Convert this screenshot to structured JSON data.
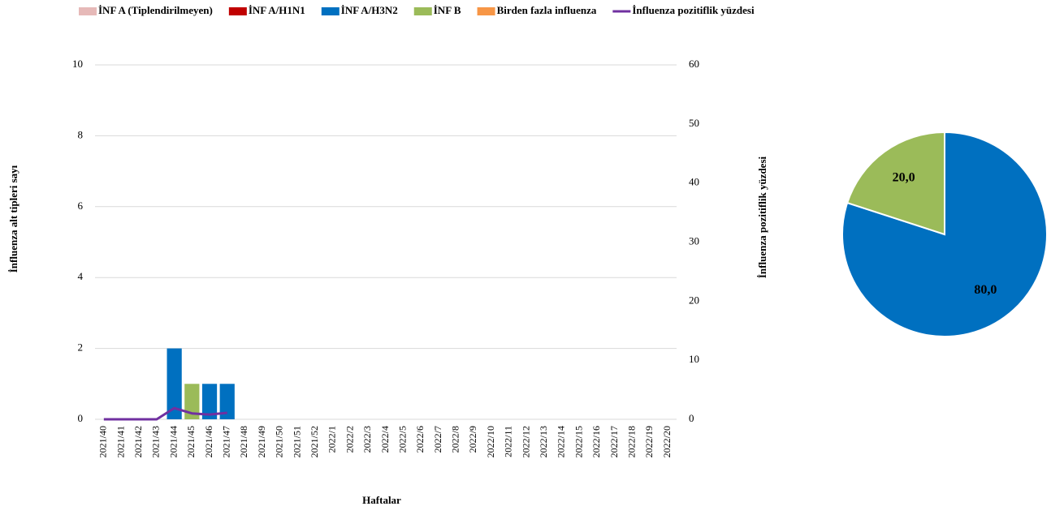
{
  "chart_data": [
    {
      "type": "bar",
      "x_label": "Haftalar",
      "y_label": "İnfluenza alt tipleri sayı",
      "y2_label": "İnfluenza pozitiflik yüzdesi",
      "categories": [
        "2021/40",
        "2021/41",
        "2021/42",
        "2021/43",
        "2021/44",
        "2021/45",
        "2021/46",
        "2021/47",
        "2021/48",
        "2021/49",
        "2021/50",
        "2021/51",
        "2021/52",
        "2022/1",
        "2022/2",
        "2022/3",
        "2022/4",
        "2022/5",
        "2022/6",
        "2022/7",
        "2022/8",
        "2022/9",
        "2022/10",
        "2022/11",
        "2022/12",
        "2022/13",
        "2022/14",
        "2022/15",
        "2022/16",
        "2022/17",
        "2022/18",
        "2022/19",
        "2022/20"
      ],
      "series": [
        {
          "name": "İNF A (Tiplendirilmeyen)",
          "color": "#e6b9b8",
          "values": [
            0,
            0,
            0,
            0,
            0,
            0,
            0,
            0,
            null,
            null,
            null,
            null,
            null,
            null,
            null,
            null,
            null,
            null,
            null,
            null,
            null,
            null,
            null,
            null,
            null,
            null,
            null,
            null,
            null,
            null,
            null,
            null,
            null
          ]
        },
        {
          "name": "İNF A/H1N1",
          "color": "#c00000",
          "values": [
            0,
            0,
            0,
            0,
            0,
            0,
            0,
            0,
            null,
            null,
            null,
            null,
            null,
            null,
            null,
            null,
            null,
            null,
            null,
            null,
            null,
            null,
            null,
            null,
            null,
            null,
            null,
            null,
            null,
            null,
            null,
            null,
            null
          ]
        },
        {
          "name": "İNF A/H3N2",
          "color": "#0070c0",
          "values": [
            0,
            0,
            0,
            0,
            2,
            0,
            1,
            1,
            null,
            null,
            null,
            null,
            null,
            null,
            null,
            null,
            null,
            null,
            null,
            null,
            null,
            null,
            null,
            null,
            null,
            null,
            null,
            null,
            null,
            null,
            null,
            null,
            null
          ]
        },
        {
          "name": "İNF B",
          "color": "#9bbb59",
          "values": [
            0,
            0,
            0,
            0,
            0,
            1,
            0,
            0,
            null,
            null,
            null,
            null,
            null,
            null,
            null,
            null,
            null,
            null,
            null,
            null,
            null,
            null,
            null,
            null,
            null,
            null,
            null,
            null,
            null,
            null,
            null,
            null,
            null
          ]
        },
        {
          "name": "Birden fazla influenza",
          "color": "#f79646",
          "values": [
            0,
            0,
            0,
            0,
            0,
            0,
            0,
            0,
            null,
            null,
            null,
            null,
            null,
            null,
            null,
            null,
            null,
            null,
            null,
            null,
            null,
            null,
            null,
            null,
            null,
            null,
            null,
            null,
            null,
            null,
            null,
            null,
            null
          ]
        },
        {
          "name": "İnfluenza pozitiflik yüzdesi",
          "color": "#7030a0",
          "type": "line",
          "axis": "y2",
          "values": [
            0,
            0,
            0,
            0,
            1.9,
            1.0,
            0.8,
            1.1,
            null,
            null,
            null,
            null,
            null,
            null,
            null,
            null,
            null,
            null,
            null,
            null,
            null,
            null,
            null,
            null,
            null,
            null,
            null,
            null,
            null,
            null,
            null,
            null,
            null
          ]
        }
      ],
      "stacked": true,
      "ylim": [
        0,
        10
      ],
      "yticks": [
        0,
        2,
        4,
        6,
        8,
        10
      ],
      "y2lim": [
        0,
        60
      ],
      "y2ticks": [
        0,
        10,
        20,
        30,
        40,
        50,
        60
      ],
      "grid": true,
      "legend": "top"
    },
    {
      "type": "pie",
      "values": [
        80,
        20
      ],
      "value_labels": [
        "80,0",
        "20,0"
      ],
      "colors": [
        "#0070c0",
        "#9bbb59"
      ]
    }
  ]
}
